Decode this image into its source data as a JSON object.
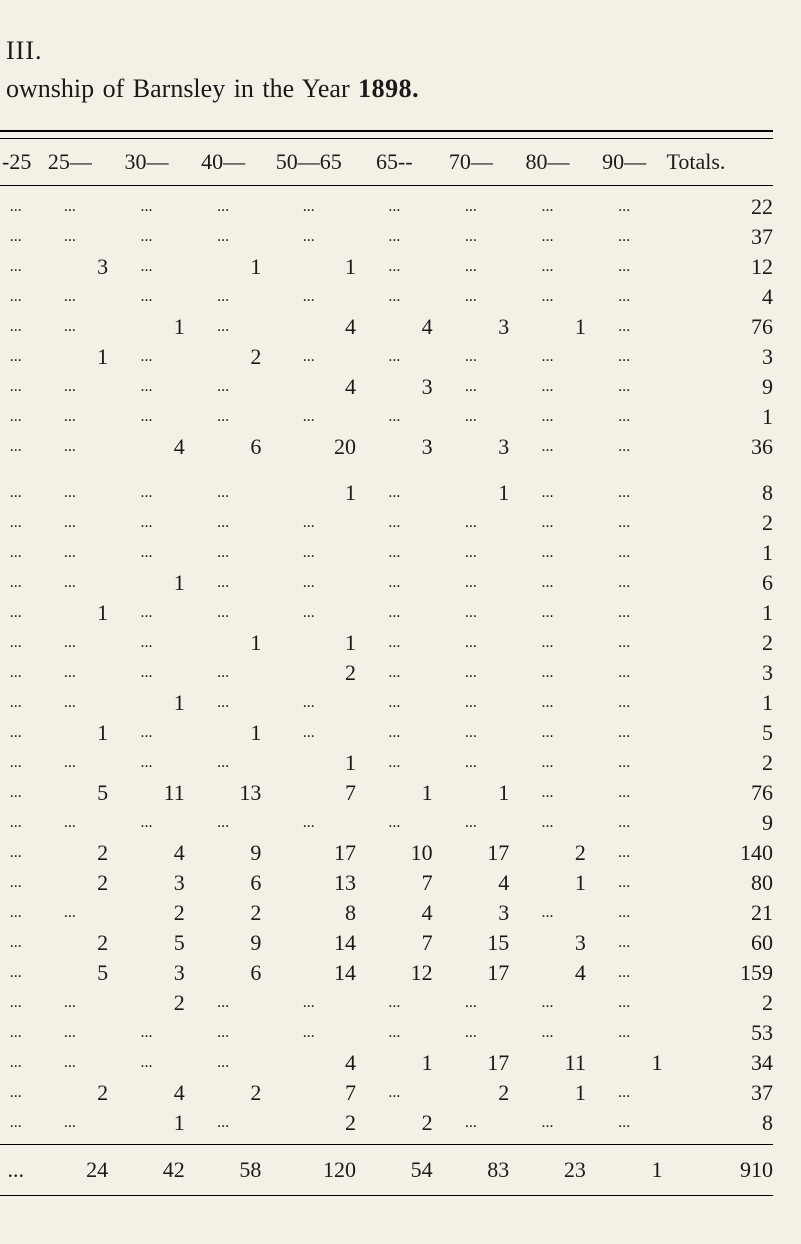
{
  "heading_roman": "III.",
  "heading_line_prefix": "ownship of Barnsley in the Year ",
  "heading_year": "1898.",
  "ellipsis": "...",
  "columns": [
    "-25",
    "25—",
    "30—",
    "40—",
    "50—65",
    "65--",
    "70—",
    "80—",
    "90—",
    "Totals."
  ],
  "block1": [
    [
      null,
      null,
      null,
      null,
      null,
      null,
      null,
      null,
      null,
      "22"
    ],
    [
      null,
      null,
      null,
      null,
      null,
      null,
      null,
      null,
      null,
      "37"
    ],
    [
      null,
      "3",
      null,
      "1",
      "1",
      null,
      null,
      null,
      null,
      "12"
    ],
    [
      null,
      null,
      null,
      null,
      null,
      null,
      null,
      null,
      null,
      "4"
    ],
    [
      null,
      null,
      "1",
      null,
      "4",
      "4",
      "3",
      "1",
      null,
      "76"
    ],
    [
      null,
      "1",
      null,
      "2",
      null,
      null,
      null,
      null,
      null,
      "3"
    ],
    [
      null,
      null,
      null,
      null,
      "4",
      "3",
      null,
      null,
      null,
      "9"
    ],
    [
      null,
      null,
      null,
      null,
      null,
      null,
      null,
      null,
      null,
      "1"
    ],
    [
      null,
      null,
      "4",
      "6",
      "20",
      "3",
      "3",
      null,
      null,
      "36"
    ]
  ],
  "block2": [
    [
      null,
      null,
      null,
      null,
      "1",
      null,
      "1",
      null,
      null,
      "8"
    ],
    [
      null,
      null,
      null,
      null,
      null,
      null,
      null,
      null,
      null,
      "2"
    ],
    [
      null,
      null,
      null,
      null,
      null,
      null,
      null,
      null,
      null,
      "1"
    ],
    [
      null,
      null,
      "1",
      null,
      null,
      null,
      null,
      null,
      null,
      "6"
    ],
    [
      null,
      "1",
      null,
      null,
      null,
      null,
      null,
      null,
      null,
      "1"
    ],
    [
      null,
      null,
      null,
      "1",
      "1",
      null,
      null,
      null,
      null,
      "2"
    ],
    [
      null,
      null,
      null,
      null,
      "2",
      null,
      null,
      null,
      null,
      "3"
    ],
    [
      null,
      null,
      "1",
      null,
      null,
      null,
      null,
      null,
      null,
      "1"
    ],
    [
      null,
      "1",
      null,
      "1",
      null,
      null,
      null,
      null,
      null,
      "5"
    ],
    [
      null,
      null,
      null,
      null,
      "1",
      null,
      null,
      null,
      null,
      "2"
    ],
    [
      null,
      "5",
      "11",
      "13",
      "7",
      "1",
      "1",
      null,
      null,
      "76"
    ],
    [
      null,
      null,
      null,
      null,
      null,
      null,
      null,
      null,
      null,
      "9"
    ],
    [
      null,
      "2",
      "4",
      "9",
      "17",
      "10",
      "17",
      "2",
      null,
      "140"
    ],
    [
      null,
      "2",
      "3",
      "6",
      "13",
      "7",
      "4",
      "1",
      null,
      "80"
    ],
    [
      null,
      null,
      "2",
      "2",
      "8",
      "4",
      "3",
      null,
      null,
      "21"
    ],
    [
      null,
      "2",
      "5",
      "9",
      "14",
      "7",
      "15",
      "3",
      null,
      "60"
    ],
    [
      null,
      "5",
      "3",
      "6",
      "14",
      "12",
      "17",
      "4",
      null,
      "159"
    ],
    [
      null,
      null,
      "2",
      null,
      null,
      null,
      null,
      null,
      null,
      "2"
    ],
    [
      null,
      null,
      null,
      null,
      null,
      null,
      null,
      null,
      null,
      "53"
    ],
    [
      null,
      null,
      null,
      null,
      "4",
      "1",
      "17",
      "11",
      "1",
      "34"
    ],
    [
      null,
      "2",
      "4",
      "2",
      "7",
      null,
      "2",
      "1",
      null,
      "37"
    ],
    [
      null,
      null,
      "1",
      null,
      "2",
      "2",
      null,
      null,
      null,
      "8"
    ]
  ],
  "footer": [
    null,
    "24",
    "42",
    "58",
    "120",
    "54",
    "83",
    "23",
    "1",
    "910"
  ],
  "style": {
    "background_color": "#f4f0e6",
    "text_color": "#1a1a1a",
    "rule_color": "#000000",
    "body_fontsize_pt": 16,
    "header_fontsize_pt": 16,
    "font_family": "Times New Roman serif"
  }
}
